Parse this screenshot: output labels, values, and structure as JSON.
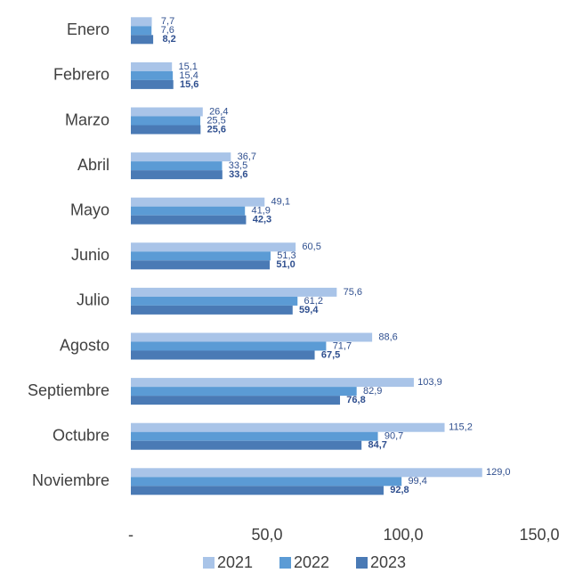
{
  "chart_data": {
    "type": "bar",
    "orientation": "horizontal",
    "categories": [
      "Enero",
      "Febrero",
      "Marzo",
      "Abril",
      "Mayo",
      "Junio",
      "Julio",
      "Agosto",
      "Septiembre",
      "Octubre",
      "Noviembre"
    ],
    "series": [
      {
        "name": "2021",
        "color": "#a9c4e8",
        "values": [
          7.7,
          15.1,
          26.4,
          36.7,
          49.1,
          60.5,
          75.6,
          88.6,
          103.9,
          115.2,
          129.0
        ],
        "value_labels": [
          "7,7",
          "15,1",
          "26,4",
          "36,7",
          "49,1",
          "60,5",
          "75,6",
          "88,6",
          "103,9",
          "115,2",
          "129,0"
        ]
      },
      {
        "name": "2022",
        "color": "#5b9bd5",
        "values": [
          7.6,
          15.4,
          25.5,
          33.5,
          41.9,
          51.3,
          61.2,
          71.7,
          82.9,
          90.7,
          99.4
        ],
        "value_labels": [
          "7,6",
          "15,4",
          "25,5",
          "33,5",
          "41,9",
          "51,3",
          "61,2",
          "71,7",
          "82,9",
          "90,7",
          "99,4"
        ]
      },
      {
        "name": "2023",
        "color": "#4a7ab5",
        "values": [
          8.2,
          15.6,
          25.6,
          33.6,
          42.3,
          51.0,
          59.4,
          67.5,
          76.8,
          84.7,
          92.8
        ],
        "value_labels": [
          "8,2",
          "15,6",
          "25,6",
          "33,6",
          "42,3",
          "51,0",
          "59,4",
          "67,5",
          "76,8",
          "84,7",
          "92,8"
        ]
      }
    ],
    "xlim": [
      0,
      150
    ],
    "xticks": [
      {
        "value": 0,
        "label": "-"
      },
      {
        "value": 50,
        "label": "50,0"
      },
      {
        "value": 100,
        "label": "100,0"
      },
      {
        "value": 150,
        "label": "150,0"
      }
    ],
    "grid": false,
    "legend": "bottom"
  }
}
